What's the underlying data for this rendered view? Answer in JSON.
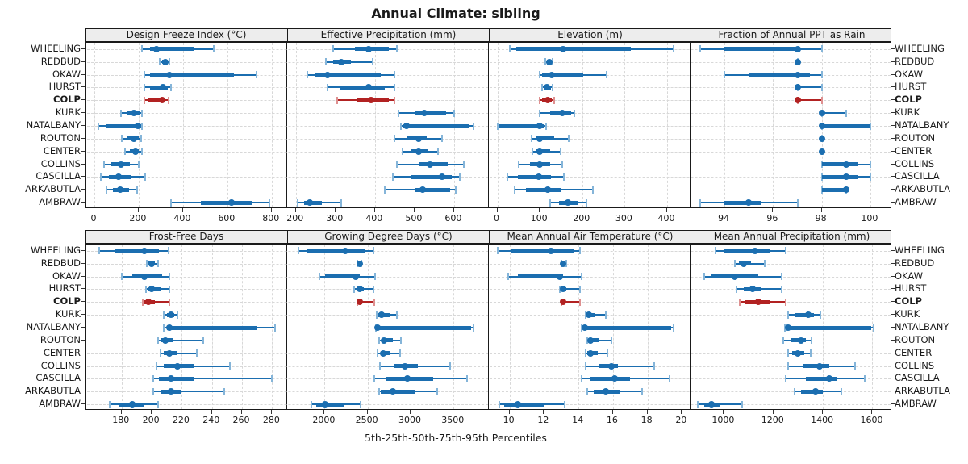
{
  "title": "Annual Climate: sibling",
  "caption": "5th-25th-50th-75th-95th Percentiles",
  "chart_data": {
    "type": "scatter",
    "subtype": "percentile-dotplot",
    "grid": "dashed",
    "percentile_labels": [
      "5th",
      "25th",
      "50th",
      "75th",
      "95th"
    ],
    "sites": [
      "WHEELING",
      "REDBUD",
      "OKAW",
      "HURST",
      "COLP",
      "KURK",
      "NATALBANY",
      "ROUTON",
      "CENTER",
      "COLLINS",
      "CASCILLA",
      "ARKABUTLA",
      "AMBRAW"
    ],
    "highlight_site": "COLP",
    "colors": {
      "series": "#1b6eb0",
      "series_light": "#85b5d9",
      "highlight": "#b22222",
      "highlight_light": "#de9090",
      "strip_bg": "#ededed",
      "panel_border": "#1a1a1a",
      "gridline": "#d8d8d8"
    },
    "panels": [
      {
        "title": "Design Freeze Index (°C)",
        "row": 0,
        "col": 0,
        "xlim": [
          -40,
          870
        ],
        "ticks": [
          0,
          200,
          400,
          600,
          800
        ],
        "values": {
          "WHEELING": [
            215,
            250,
            280,
            450,
            540
          ],
          "REDBUD": [
            295,
            305,
            320,
            332,
            340
          ],
          "OKAW": [
            225,
            250,
            340,
            630,
            730
          ],
          "HURST": [
            225,
            250,
            310,
            332,
            345
          ],
          "COLP": [
            225,
            240,
            305,
            322,
            335
          ],
          "KURK": [
            120,
            145,
            180,
            205,
            215
          ],
          "NATALBANY": [
            20,
            50,
            198,
            210,
            216
          ],
          "ROUTON": [
            125,
            145,
            180,
            200,
            210
          ],
          "CENTER": [
            140,
            160,
            185,
            202,
            215
          ],
          "COLLINS": [
            42,
            78,
            120,
            160,
            200
          ],
          "CASCILLA": [
            28,
            65,
            108,
            168,
            230
          ],
          "ARKABUTLA": [
            55,
            85,
            115,
            155,
            192
          ],
          "AMBRAW": [
            345,
            480,
            620,
            715,
            790
          ]
        }
      },
      {
        "title": "Effective Precipitation (mm)",
        "row": 0,
        "col": 1,
        "xlim": [
          178,
          688
        ],
        "ticks": [
          200,
          300,
          400,
          500,
          600
        ],
        "values": {
          "WHEELING": [
            295,
            350,
            385,
            435,
            455
          ],
          "REDBUD": [
            275,
            295,
            315,
            340,
            395
          ],
          "OKAW": [
            230,
            250,
            280,
            415,
            450
          ],
          "HURST": [
            280,
            310,
            385,
            425,
            450
          ],
          "COLP": [
            305,
            355,
            390,
            435,
            450
          ],
          "KURK": [
            460,
            500,
            525,
            580,
            600
          ],
          "NATALBANY": [
            465,
            470,
            480,
            640,
            650
          ],
          "ROUTON": [
            450,
            480,
            510,
            530,
            570
          ],
          "CENTER": [
            470,
            490,
            510,
            535,
            560
          ],
          "COLLINS": [
            455,
            510,
            540,
            585,
            625
          ],
          "CASCILLA": [
            445,
            490,
            570,
            595,
            615
          ],
          "ARKABUTLA": [
            425,
            500,
            520,
            590,
            605
          ],
          "AMBRAW": [
            205,
            220,
            235,
            265,
            315
          ]
        }
      },
      {
        "title": "Elevation (m)",
        "row": 0,
        "col": 2,
        "xlim": [
          -20,
          455
        ],
        "ticks": [
          0,
          100,
          200,
          300,
          400
        ],
        "values": {
          "WHEELING": [
            30,
            45,
            155,
            315,
            415
          ],
          "REDBUD": [
            113,
            116,
            122,
            128,
            131
          ],
          "OKAW": [
            100,
            105,
            128,
            203,
            257
          ],
          "HURST": [
            105,
            110,
            117,
            127,
            131
          ],
          "COLP": [
            100,
            105,
            118,
            129,
            133
          ],
          "KURK": [
            100,
            125,
            152,
            174,
            181
          ],
          "NATALBANY": [
            0,
            3,
            100,
            111,
            115
          ],
          "ROUTON": [
            80,
            90,
            100,
            133,
            168
          ],
          "CENTER": [
            82,
            90,
            100,
            124,
            149
          ],
          "COLLINS": [
            50,
            76,
            100,
            124,
            152
          ],
          "CASCILLA": [
            23,
            48,
            98,
            127,
            157
          ],
          "ARKABUTLA": [
            40,
            67,
            118,
            150,
            226
          ],
          "AMBRAW": [
            125,
            146,
            166,
            190,
            209
          ]
        }
      },
      {
        "title": "Fraction of Annual PPT as Rain",
        "row": 0,
        "col": 3,
        "xlim": [
          92.6,
          100.9
        ],
        "ticks": [
          94,
          96,
          98,
          100
        ],
        "values": {
          "WHEELING": [
            93,
            94,
            97,
            97,
            98
          ],
          "REDBUD": [
            97,
            97,
            97,
            97,
            97
          ],
          "OKAW": [
            94,
            95,
            97,
            97.5,
            98
          ],
          "HURST": [
            97,
            97,
            97,
            97,
            98
          ],
          "COLP": [
            97,
            97,
            97,
            97,
            98
          ],
          "KURK": [
            98,
            98,
            98,
            98,
            99
          ],
          "NATALBANY": [
            98,
            98,
            98,
            100,
            100
          ],
          "ROUTON": [
            98,
            98,
            98,
            98,
            98
          ],
          "CENTER": [
            98,
            98,
            98,
            98,
            98
          ],
          "COLLINS": [
            98,
            98,
            99,
            99.5,
            100
          ],
          "CASCILLA": [
            98,
            98,
            99,
            99.5,
            100
          ],
          "ARKABUTLA": [
            98,
            98,
            99,
            99,
            99
          ],
          "AMBRAW": [
            93,
            94,
            95,
            95.5,
            97
          ]
        }
      },
      {
        "title": "Frost-Free Days",
        "row": 1,
        "col": 0,
        "xlim": [
          156,
          290
        ],
        "ticks": [
          180,
          200,
          220,
          240,
          260,
          280
        ],
        "values": {
          "WHEELING": [
            165,
            176,
            195,
            205,
            211
          ],
          "REDBUD": [
            197,
            198,
            200,
            202,
            204
          ],
          "OKAW": [
            180,
            187,
            195,
            207,
            212
          ],
          "HURST": [
            196,
            198,
            200,
            206,
            212
          ],
          "COLP": [
            194,
            195,
            198,
            202,
            212
          ],
          "KURK": [
            208,
            210,
            213,
            215,
            217
          ],
          "NATALBANY": [
            208,
            210,
            212,
            270,
            282
          ],
          "ROUTON": [
            204,
            206,
            209,
            214,
            234
          ],
          "CENTER": [
            206,
            208,
            212,
            217,
            230
          ],
          "COLLINS": [
            203,
            208,
            217,
            228,
            252
          ],
          "CASCILLA": [
            201,
            205,
            213,
            228,
            280
          ],
          "ARKABUTLA": [
            201,
            206,
            213,
            219,
            248
          ],
          "AMBRAW": [
            172,
            178,
            187,
            195,
            204
          ]
        }
      },
      {
        "title": "Growing Degree Days (°C)",
        "row": 1,
        "col": 1,
        "xlim": [
          1565,
          3910
        ],
        "ticks": [
          2000,
          2500,
          3000,
          3500
        ],
        "values": {
          "WHEELING": [
            1700,
            1800,
            2240,
            2470,
            2570
          ],
          "REDBUD": [
            2385,
            2395,
            2405,
            2420,
            2430
          ],
          "OKAW": [
            1940,
            2010,
            2360,
            2410,
            2585
          ],
          "HURST": [
            2345,
            2370,
            2405,
            2455,
            2570
          ],
          "COLP": [
            2385,
            2392,
            2410,
            2440,
            2580
          ],
          "KURK": [
            2610,
            2625,
            2665,
            2765,
            2840
          ],
          "NATALBANY": [
            2595,
            2605,
            2615,
            3700,
            3735
          ],
          "ROUTON": [
            2630,
            2670,
            2695,
            2795,
            2890
          ],
          "CENTER": [
            2620,
            2650,
            2680,
            2765,
            2875
          ],
          "COLLINS": [
            2640,
            2815,
            2930,
            3080,
            3460
          ],
          "CASCILLA": [
            2580,
            2705,
            2960,
            3265,
            3655
          ],
          "ARKABUTLA": [
            2635,
            2655,
            2795,
            3060,
            3305
          ],
          "AMBRAW": [
            1850,
            1905,
            2010,
            2235,
            2415
          ]
        }
      },
      {
        "title": "Mean Annual Air Temperature (°C)",
        "row": 1,
        "col": 2,
        "xlim": [
          8.8,
          20.5
        ],
        "ticks": [
          10,
          12,
          14,
          16,
          18,
          20
        ],
        "values": {
          "WHEELING": [
            9.3,
            10.1,
            12.4,
            13.7,
            14.1
          ],
          "REDBUD": [
            13.0,
            13.0,
            13.1,
            13.2,
            13.3
          ],
          "OKAW": [
            9.9,
            10.5,
            12.9,
            13.1,
            14.2
          ],
          "HURST": [
            12.9,
            13.0,
            13.1,
            13.3,
            14.1
          ],
          "COLP": [
            13.0,
            13.0,
            13.1,
            13.2,
            14.1
          ],
          "KURK": [
            14.4,
            14.5,
            14.6,
            15.0,
            15.6
          ],
          "NATALBANY": [
            14.2,
            14.3,
            14.35,
            19.4,
            19.5
          ],
          "ROUTON": [
            14.5,
            14.6,
            14.7,
            15.2,
            15.9
          ],
          "CENTER": [
            14.4,
            14.5,
            14.7,
            15.1,
            15.7
          ],
          "COLLINS": [
            14.4,
            15.2,
            15.9,
            16.3,
            18.4
          ],
          "CASCILLA": [
            14.2,
            14.7,
            16.1,
            17.0,
            19.3
          ],
          "ARKABUTLA": [
            14.5,
            14.9,
            15.6,
            16.4,
            17.7
          ],
          "AMBRAW": [
            9.4,
            9.7,
            10.5,
            12.0,
            13.2
          ]
        }
      },
      {
        "title": "Mean Annual Precipitation (mm)",
        "row": 1,
        "col": 3,
        "xlim": [
          865,
          1680
        ],
        "ticks": [
          1000,
          1200,
          1400,
          1600
        ],
        "values": {
          "WHEELING": [
            965,
            1000,
            1125,
            1185,
            1250
          ],
          "REDBUD": [
            1045,
            1060,
            1080,
            1110,
            1165
          ],
          "OKAW": [
            920,
            950,
            1045,
            1140,
            1235
          ],
          "HURST": [
            1050,
            1080,
            1115,
            1150,
            1235
          ],
          "COLP": [
            1065,
            1085,
            1140,
            1185,
            1250
          ],
          "KURK": [
            1260,
            1285,
            1340,
            1365,
            1390
          ],
          "NATALBANY": [
            1245,
            1250,
            1260,
            1595,
            1605
          ],
          "ROUTON": [
            1240,
            1270,
            1310,
            1330,
            1355
          ],
          "CENTER": [
            1260,
            1275,
            1300,
            1325,
            1350
          ],
          "COLLINS": [
            1260,
            1320,
            1385,
            1425,
            1530
          ],
          "CASCILLA": [
            1250,
            1330,
            1425,
            1455,
            1570
          ],
          "ARKABUTLA": [
            1285,
            1310,
            1370,
            1400,
            1475
          ],
          "AMBRAW": [
            895,
            920,
            950,
            985,
            1075
          ]
        }
      }
    ]
  }
}
